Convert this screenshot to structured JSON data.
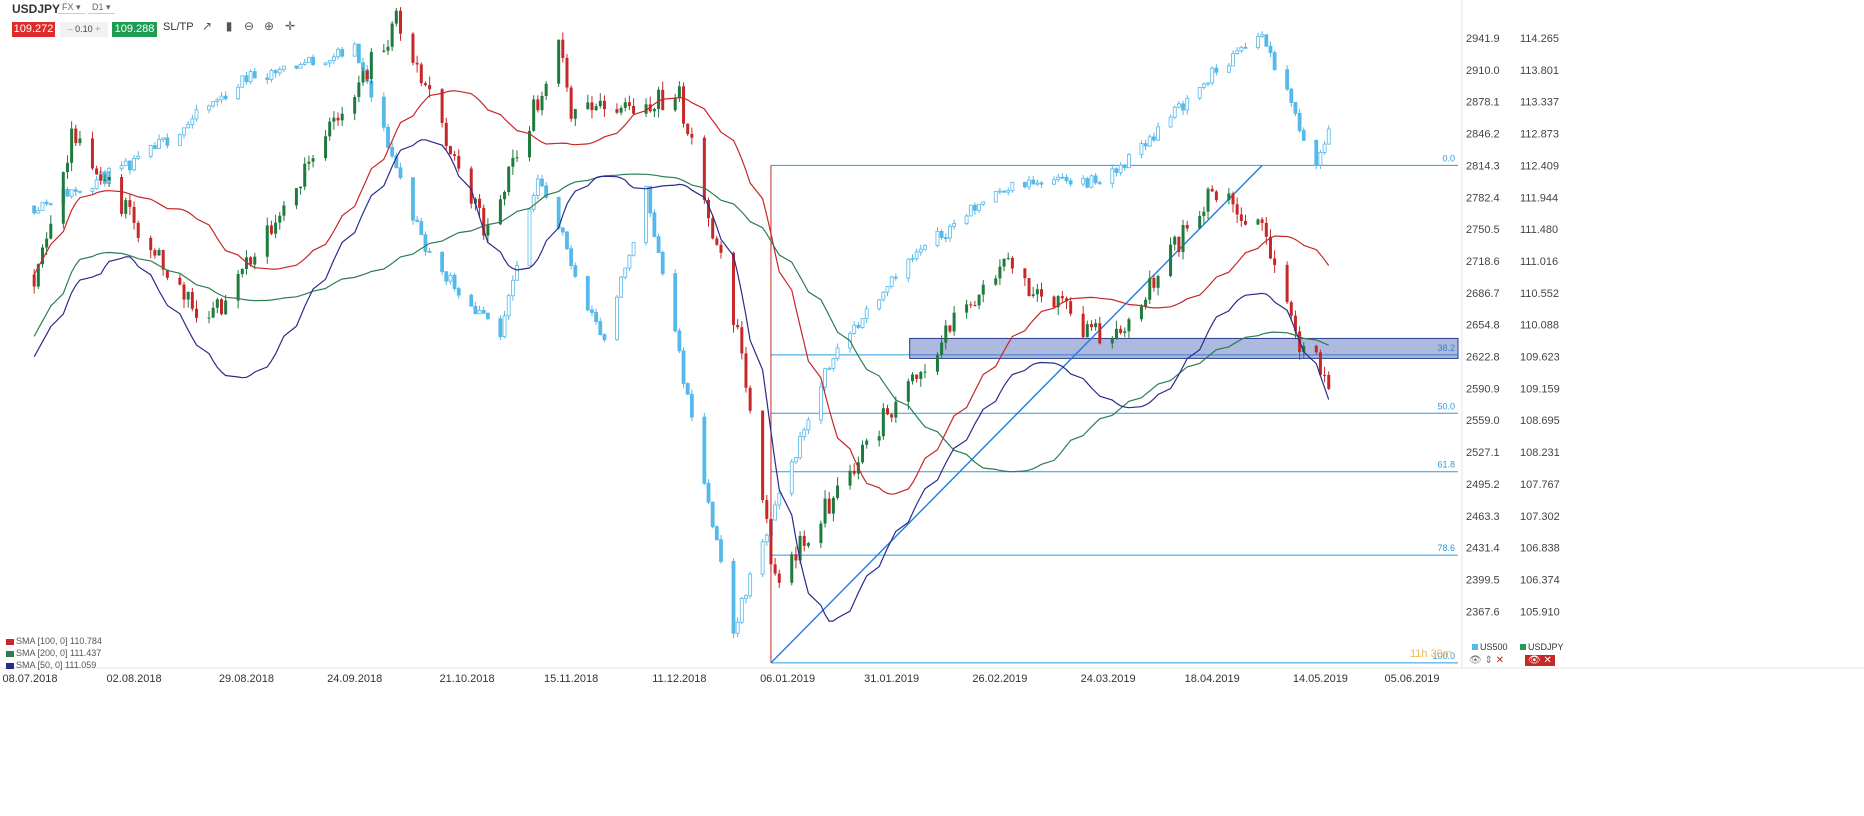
{
  "toolbar": {
    "symbol": "USDJPY",
    "market": "FX",
    "interval": "D1",
    "sell_price": "109.272",
    "spread": "0.10",
    "buy_price": "109.288",
    "sltp_label": "SL/TP",
    "icons": [
      "line-chart-icon",
      "candles-icon",
      "zoom-out-icon",
      "zoom-in-icon",
      "crosshair-icon"
    ]
  },
  "legend": [
    {
      "label": "SMA [100, 0] 110.784",
      "color": "#c62828"
    },
    {
      "label": "SMA [200, 0] 111.437",
      "color": "#2e7d52"
    },
    {
      "label": "SMA [50, 0] 111.059",
      "color": "#2b2b8c"
    }
  ],
  "corner": {
    "us500_label": "US500",
    "usdjpy_label": "USDJPY",
    "countdown": "11h 30m"
  },
  "colors": {
    "us500": "#55b9ea",
    "bull": "#1f7a3e",
    "bear": "#c62828",
    "fib": "#2a9ae0",
    "zone_fill": "#4a63b5",
    "sma100": "#c62828",
    "sma200": "#2e7d52",
    "sma50": "#2b2b8c"
  },
  "chart_data": {
    "type": "line",
    "x_tick_labels": [
      "08.07.2018",
      "02.08.2018",
      "29.08.2018",
      "24.09.2018",
      "21.10.2018",
      "15.11.2018",
      "11.12.2018",
      "06.01.2019",
      "31.01.2019",
      "26.02.2019",
      "24.03.2019",
      "18.04.2019",
      "14.05.2019",
      "05.06.2019"
    ],
    "y_left_ticks": [
      "2941.9",
      "2910.0",
      "2878.1",
      "2846.2",
      "2814.3",
      "2782.4",
      "2750.5",
      "2718.6",
      "2686.7",
      "2654.8",
      "2622.8",
      "2590.9",
      "2559.0",
      "2527.1",
      "2495.2",
      "2463.3",
      "2431.4",
      "2399.5",
      "2367.6"
    ],
    "y_right_ticks": [
      "114.265",
      "113.801",
      "113.337",
      "112.873",
      "112.409",
      "111.944",
      "111.480",
      "111.016",
      "110.552",
      "110.088",
      "109.623",
      "109.159",
      "108.695",
      "108.231",
      "107.767",
      "107.302",
      "106.838",
      "106.374",
      "105.910"
    ],
    "fib_levels": [
      {
        "label": "0.0",
        "value": 2814.3
      },
      {
        "label": "38.2",
        "value": 2624.5
      },
      {
        "label": "50.0",
        "value": 2566.0
      },
      {
        "label": "61.8",
        "value": 2507.5
      },
      {
        "label": "78.6",
        "value": 2424.0
      },
      {
        "label": "100.0",
        "value": 2316.0
      }
    ],
    "zone": {
      "high": 2641.0,
      "low": 2621.0
    },
    "series": [
      {
        "name": "US500",
        "style": "candles-outline",
        "key_points": [
          [
            "08.07.2018",
            2772
          ],
          [
            "02.08.2018",
            2815
          ],
          [
            "29.08.2018",
            2902
          ],
          [
            "24.09.2018",
            2930
          ],
          [
            "11.10.2018",
            2730
          ],
          [
            "29.10.2018",
            2640
          ],
          [
            "07.11.2018",
            2806
          ],
          [
            "23.11.2018",
            2633
          ],
          [
            "03.12.2018",
            2790
          ],
          [
            "24.12.2018",
            2351
          ],
          [
            "15.01.2019",
            2610
          ],
          [
            "31.01.2019",
            2704
          ],
          [
            "26.02.2019",
            2793
          ],
          [
            "24.03.2019",
            2800
          ],
          [
            "18.04.2019",
            2905
          ],
          [
            "30.04.2019",
            2946
          ],
          [
            "13.05.2019",
            2812
          ],
          [
            "16.05.2019",
            2850
          ]
        ]
      },
      {
        "name": "USDJPY",
        "style": "candles-filled",
        "key_points": [
          [
            "08.07.2018",
            110.6
          ],
          [
            "18.07.2018",
            112.8
          ],
          [
            "02.08.2018",
            111.6
          ],
          [
            "20.08.2018",
            110.1
          ],
          [
            "29.08.2018",
            111.0
          ],
          [
            "04.10.2018",
            114.5
          ],
          [
            "26.10.2018",
            111.4
          ],
          [
            "12.11.2018",
            114.2
          ],
          [
            "15.11.2018",
            113.2
          ],
          [
            "11.12.2018",
            113.4
          ],
          [
            "25.12.2018",
            110.0
          ],
          [
            "03.01.2019",
            106.3
          ],
          [
            "31.01.2019",
            108.9
          ],
          [
            "26.02.2019",
            111.0
          ],
          [
            "24.03.2019",
            109.8
          ],
          [
            "18.04.2019",
            112.0
          ],
          [
            "30.04.2019",
            111.5
          ],
          [
            "09.05.2019",
            109.8
          ],
          [
            "16.05.2019",
            109.3
          ]
        ]
      }
    ]
  }
}
